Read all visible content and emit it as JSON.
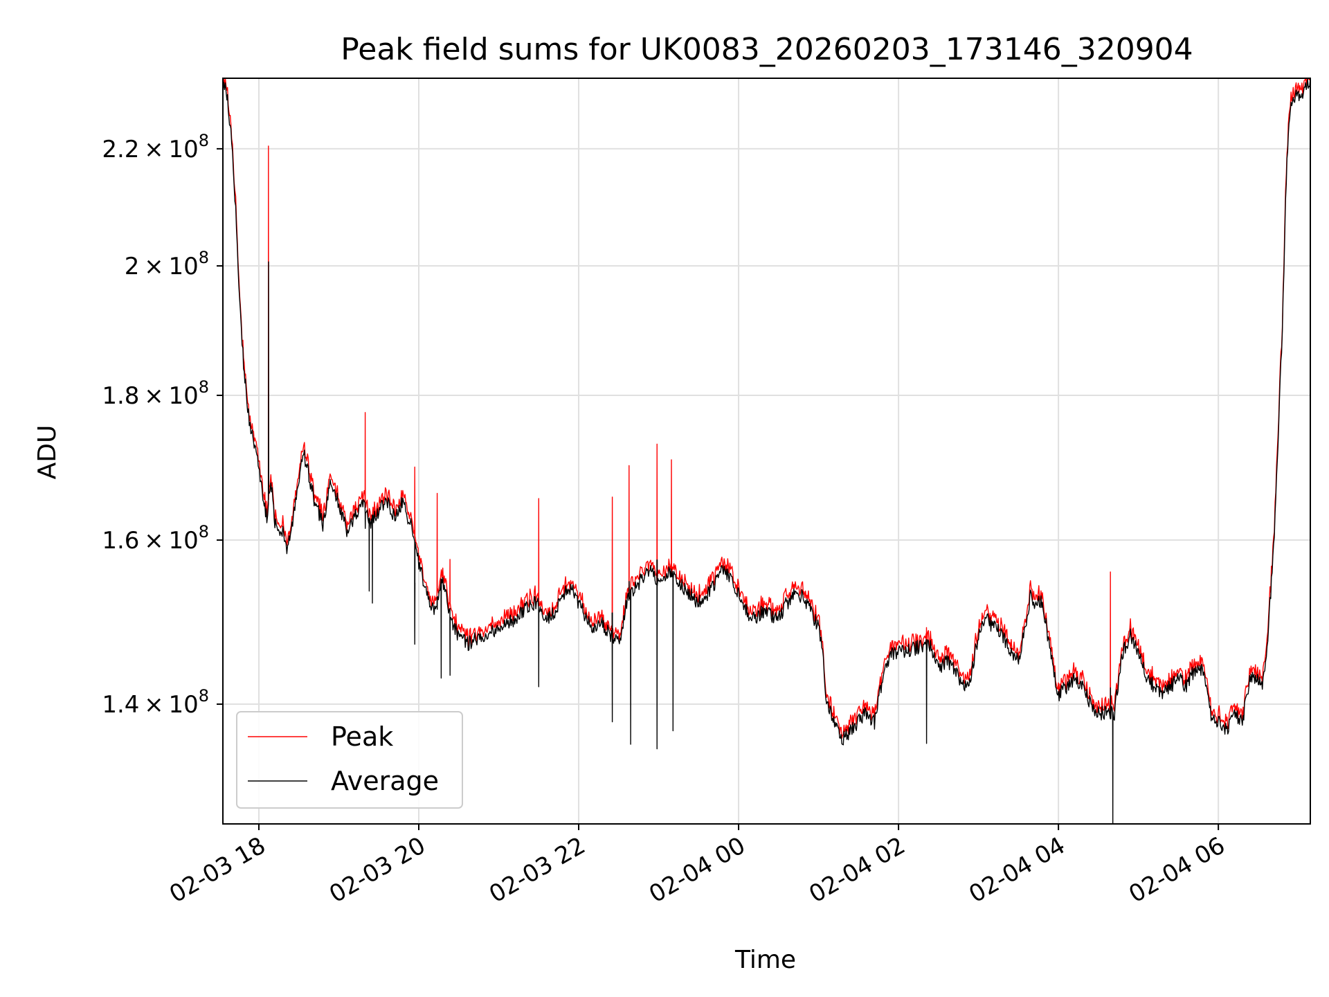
{
  "chart_data": {
    "type": "line",
    "title": "Peak field sums for UK0083_20260203_173146_320904",
    "xlabel": "Time",
    "ylabel": "ADU",
    "y_scale": "log",
    "grid": true,
    "legend_position": "lower-left",
    "x_range_hours": [
      -0.45,
      13.15
    ],
    "y_range": [
      127000000,
      233000000
    ],
    "x_ticks": [
      {
        "hours": 0,
        "label": "02-03 18"
      },
      {
        "hours": 2,
        "label": "02-03 20"
      },
      {
        "hours": 4,
        "label": "02-03 22"
      },
      {
        "hours": 6,
        "label": "02-04 00"
      },
      {
        "hours": 8,
        "label": "02-04 02"
      },
      {
        "hours": 10,
        "label": "02-04 04"
      },
      {
        "hours": 12,
        "label": "02-04 06"
      }
    ],
    "y_ticks": [
      {
        "value": 140000000,
        "mantissa": "1.4",
        "exponent": "8"
      },
      {
        "value": 160000000,
        "mantissa": "1.6",
        "exponent": "8"
      },
      {
        "value": 180000000,
        "mantissa": "1.8",
        "exponent": "8"
      },
      {
        "value": 200000000,
        "mantissa": "2",
        "exponent": "8"
      },
      {
        "value": 220000000,
        "mantissa": "2.2",
        "exponent": "8"
      }
    ],
    "series": [
      {
        "name": "Peak",
        "color": "#ff0000"
      },
      {
        "name": "Average",
        "color": "#000000"
      }
    ],
    "average_points": [
      [
        -0.45,
        232000000
      ],
      [
        -0.4,
        230000000
      ],
      [
        -0.35,
        223000000
      ],
      [
        -0.3,
        212000000
      ],
      [
        -0.25,
        197000000
      ],
      [
        -0.2,
        186000000
      ],
      [
        -0.15,
        179000000
      ],
      [
        -0.1,
        175000000
      ],
      [
        -0.05,
        172000000
      ],
      [
        0.0,
        170000000
      ],
      [
        0.05,
        166000000
      ],
      [
        0.1,
        163000000
      ],
      [
        0.15,
        168000000
      ],
      [
        0.2,
        162000000
      ],
      [
        0.3,
        161000000
      ],
      [
        0.35,
        158000000
      ],
      [
        0.45,
        164000000
      ],
      [
        0.55,
        172000000
      ],
      [
        0.6,
        170000000
      ],
      [
        0.7,
        165000000
      ],
      [
        0.8,
        162000000
      ],
      [
        0.9,
        168000000
      ],
      [
        1.0,
        165000000
      ],
      [
        1.1,
        161000000
      ],
      [
        1.2,
        163000000
      ],
      [
        1.3,
        165000000
      ],
      [
        1.4,
        162000000
      ],
      [
        1.5,
        164000000
      ],
      [
        1.6,
        165000000
      ],
      [
        1.7,
        163000000
      ],
      [
        1.8,
        165000000
      ],
      [
        1.9,
        162000000
      ],
      [
        2.0,
        157000000
      ],
      [
        2.1,
        153000000
      ],
      [
        2.2,
        151000000
      ],
      [
        2.3,
        155000000
      ],
      [
        2.4,
        150000000
      ],
      [
        2.5,
        148000000
      ],
      [
        2.6,
        147000000
      ],
      [
        2.8,
        148000000
      ],
      [
        3.0,
        149000000
      ],
      [
        3.2,
        150000000
      ],
      [
        3.4,
        152000000
      ],
      [
        3.5,
        152000000
      ],
      [
        3.6,
        150000000
      ],
      [
        3.7,
        151000000
      ],
      [
        3.8,
        153000000
      ],
      [
        3.9,
        154000000
      ],
      [
        4.0,
        152000000
      ],
      [
        4.1,
        150000000
      ],
      [
        4.2,
        149000000
      ],
      [
        4.3,
        149500000
      ],
      [
        4.4,
        148000000
      ],
      [
        4.5,
        147000000
      ],
      [
        4.6,
        152000000
      ],
      [
        4.7,
        154000000
      ],
      [
        4.8,
        155000000
      ],
      [
        4.9,
        156000000
      ],
      [
        5.0,
        154000000
      ],
      [
        5.1,
        156000000
      ],
      [
        5.2,
        155000000
      ],
      [
        5.4,
        153000000
      ],
      [
        5.5,
        152000000
      ],
      [
        5.6,
        153000000
      ],
      [
        5.8,
        156000000
      ],
      [
        5.9,
        155000000
      ],
      [
        6.0,
        153000000
      ],
      [
        6.1,
        151000000
      ],
      [
        6.2,
        150000000
      ],
      [
        6.3,
        151000000
      ],
      [
        6.4,
        150500000
      ],
      [
        6.5,
        150000000
      ],
      [
        6.6,
        152000000
      ],
      [
        6.7,
        153000000
      ],
      [
        6.8,
        153000000
      ],
      [
        6.9,
        151000000
      ],
      [
        7.0,
        149000000
      ],
      [
        7.05,
        146000000
      ],
      [
        7.1,
        140000000
      ],
      [
        7.2,
        138000000
      ],
      [
        7.3,
        136000000
      ],
      [
        7.4,
        137000000
      ],
      [
        7.5,
        138000000
      ],
      [
        7.6,
        139000000
      ],
      [
        7.7,
        138000000
      ],
      [
        7.8,
        143000000
      ],
      [
        7.9,
        146000000
      ],
      [
        8.0,
        146000000
      ],
      [
        8.2,
        146500000
      ],
      [
        8.4,
        147000000
      ],
      [
        8.5,
        144000000
      ],
      [
        8.6,
        145000000
      ],
      [
        8.7,
        144000000
      ],
      [
        8.8,
        142000000
      ],
      [
        8.9,
        143000000
      ],
      [
        9.0,
        148000000
      ],
      [
        9.1,
        150000000
      ],
      [
        9.2,
        149000000
      ],
      [
        9.3,
        148000000
      ],
      [
        9.4,
        146000000
      ],
      [
        9.5,
        145000000
      ],
      [
        9.6,
        150000000
      ],
      [
        9.65,
        153000000
      ],
      [
        9.7,
        152000000
      ],
      [
        9.8,
        152000000
      ],
      [
        9.9,
        146000000
      ],
      [
        10.0,
        141000000
      ],
      [
        10.1,
        142000000
      ],
      [
        10.2,
        143000000
      ],
      [
        10.3,
        142000000
      ],
      [
        10.4,
        140000000
      ],
      [
        10.5,
        139000000
      ],
      [
        10.6,
        139000000
      ],
      [
        10.7,
        139000000
      ],
      [
        10.8,
        146000000
      ],
      [
        10.9,
        148000000
      ],
      [
        11.0,
        146000000
      ],
      [
        11.1,
        143000000
      ],
      [
        11.2,
        142000000
      ],
      [
        11.3,
        141000000
      ],
      [
        11.4,
        142000000
      ],
      [
        11.5,
        143000000
      ],
      [
        11.6,
        142000000
      ],
      [
        11.7,
        144000000
      ],
      [
        11.8,
        144000000
      ],
      [
        11.85,
        142000000
      ],
      [
        11.9,
        139000000
      ],
      [
        12.0,
        138000000
      ],
      [
        12.1,
        137000000
      ],
      [
        12.2,
        139000000
      ],
      [
        12.3,
        138000000
      ],
      [
        12.4,
        143000000
      ],
      [
        12.5,
        143000000
      ],
      [
        12.55,
        142000000
      ],
      [
        12.6,
        145000000
      ],
      [
        12.7,
        160000000
      ],
      [
        12.8,
        190000000
      ],
      [
        12.85,
        215000000
      ],
      [
        12.9,
        228000000
      ],
      [
        13.0,
        230000000
      ],
      [
        13.1,
        231000000
      ],
      [
        13.15,
        233000000
      ]
    ],
    "peak_spikes": [
      {
        "hours": 0.12,
        "value": 220500000
      },
      {
        "hours": 1.33,
        "value": 177500000
      },
      {
        "hours": 1.95,
        "value": 169800000
      },
      {
        "hours": 2.23,
        "value": 166200000
      },
      {
        "hours": 2.39,
        "value": 157500000
      },
      {
        "hours": 3.5,
        "value": 165500000
      },
      {
        "hours": 4.42,
        "value": 165700000
      },
      {
        "hours": 4.63,
        "value": 170000000
      },
      {
        "hours": 4.98,
        "value": 173000000
      },
      {
        "hours": 5.16,
        "value": 170800000
      },
      {
        "hours": 8.35,
        "value": 149000000
      },
      {
        "hours": 10.65,
        "value": 155900000
      }
    ],
    "average_dips": [
      {
        "hours": 1.38,
        "value": 153500000
      },
      {
        "hours": 1.42,
        "value": 152000000
      },
      {
        "hours": 1.95,
        "value": 147000000
      },
      {
        "hours": 2.28,
        "value": 143000000
      },
      {
        "hours": 3.5,
        "value": 142000000
      },
      {
        "hours": 4.42,
        "value": 138000000
      },
      {
        "hours": 4.65,
        "value": 135500000
      },
      {
        "hours": 4.98,
        "value": 135000000
      },
      {
        "hours": 5.18,
        "value": 137000000
      },
      {
        "hours": 10.68,
        "value": 127000000
      }
    ]
  }
}
